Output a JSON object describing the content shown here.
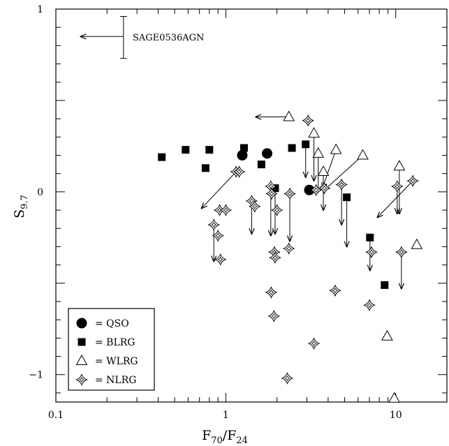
{
  "chart_data": {
    "type": "scatter",
    "xscale": "log",
    "xlim": [
      0.1,
      20
    ],
    "ylim": [
      -1.15,
      1.0
    ],
    "x_ticks": [
      "0.1",
      "1",
      "10"
    ],
    "y_ticks": [
      "1",
      "0",
      "−1"
    ],
    "xlabel": "F",
    "xlabel_sub1": "70",
    "xlabel_mid": "/F",
    "xlabel_sub2": "24",
    "ylabel": "S",
    "ylabel_sub": "9.7",
    "annotation": "SAGE0536AGN",
    "sage_point": {
      "x": 0.25,
      "y": 0.85,
      "yerr_low": 0.73,
      "yerr_high": 0.96,
      "arrow_to_x": 0.14
    },
    "legend": [
      {
        "marker": "circle",
        "label": "= QSO"
      },
      {
        "marker": "square",
        "label": "= BLRG"
      },
      {
        "marker": "triangle",
        "label": "= WLRG"
      },
      {
        "marker": "star",
        "label": "= NLRG"
      }
    ],
    "series": [
      {
        "name": "QSO",
        "marker": "circle",
        "points": [
          {
            "x": 1.25,
            "y": 0.2
          },
          {
            "x": 1.75,
            "y": 0.21
          },
          {
            "x": 3.1,
            "y": 0.01
          }
        ]
      },
      {
        "name": "BLRG",
        "marker": "square",
        "points": [
          {
            "x": 0.42,
            "y": 0.19
          },
          {
            "x": 0.58,
            "y": 0.23
          },
          {
            "x": 0.8,
            "y": 0.23
          },
          {
            "x": 0.76,
            "y": 0.13
          },
          {
            "x": 1.28,
            "y": 0.24
          },
          {
            "x": 1.62,
            "y": 0.15
          },
          {
            "x": 1.95,
            "y": 0.02,
            "arrow_y": -0.23
          },
          {
            "x": 2.45,
            "y": 0.24
          },
          {
            "x": 2.95,
            "y": 0.26,
            "arrow_y": 0.08
          },
          {
            "x": 5.15,
            "y": -0.03,
            "arrow_y": -0.3
          },
          {
            "x": 7.05,
            "y": -0.25,
            "arrow_y": -0.43
          },
          {
            "x": 8.6,
            "y": -0.51
          }
        ]
      },
      {
        "name": "WLRG",
        "marker": "triangle",
        "points": [
          {
            "x": 2.35,
            "y": 0.41,
            "arrow_x": 1.5
          },
          {
            "x": 3.3,
            "y": 0.32,
            "arrow_y": 0.06
          },
          {
            "x": 3.5,
            "y": 0.21,
            "arrow_y": 0.0
          },
          {
            "x": 3.75,
            "y": 0.11,
            "arrow_y": -0.1
          },
          {
            "x": 4.45,
            "y": 0.23,
            "arrow_x": 3.7,
            "arrow_y": 0.02
          },
          {
            "x": 6.4,
            "y": 0.2,
            "arrow_x": 3.8,
            "arrow_y": 0.01
          },
          {
            "x": 10.5,
            "y": 0.14,
            "arrow_y": -0.12
          },
          {
            "x": 13.3,
            "y": -0.29
          },
          {
            "x": 8.9,
            "y": -0.79
          },
          {
            "x": 9.8,
            "y": -1.13
          }
        ]
      },
      {
        "name": "NLRG",
        "marker": "star",
        "points": [
          {
            "x": 1.15,
            "y": 0.11,
            "arrow_x": 0.72,
            "arrow_y": -0.09
          },
          {
            "x": 1.2,
            "y": 0.11
          },
          {
            "x": 0.85,
            "y": -0.18,
            "arrow_y": -0.38
          },
          {
            "x": 0.9,
            "y": -0.24
          },
          {
            "x": 0.92,
            "y": -0.1
          },
          {
            "x": 1.0,
            "y": -0.1
          },
          {
            "x": 0.93,
            "y": -0.37
          },
          {
            "x": 1.42,
            "y": -0.05,
            "arrow_y": -0.23
          },
          {
            "x": 1.48,
            "y": -0.08
          },
          {
            "x": 1.84,
            "y": 0.03,
            "arrow_y": -0.24
          },
          {
            "x": 1.86,
            "y": -0.01
          },
          {
            "x": 2.0,
            "y": -0.1
          },
          {
            "x": 1.93,
            "y": -0.33
          },
          {
            "x": 1.95,
            "y": -0.36
          },
          {
            "x": 2.38,
            "y": -0.01,
            "arrow_y": -0.27
          },
          {
            "x": 2.35,
            "y": -0.31
          },
          {
            "x": 1.85,
            "y": -0.55
          },
          {
            "x": 1.92,
            "y": -0.68
          },
          {
            "x": 2.3,
            "y": -1.02
          },
          {
            "x": 3.05,
            "y": 0.39
          },
          {
            "x": 3.4,
            "y": 0.01
          },
          {
            "x": 3.8,
            "y": 0.02
          },
          {
            "x": 4.8,
            "y": 0.04,
            "arrow_y": -0.18
          },
          {
            "x": 4.4,
            "y": -0.54
          },
          {
            "x": 3.3,
            "y": -0.83
          },
          {
            "x": 7.2,
            "y": -0.33
          },
          {
            "x": 7.0,
            "y": -0.62
          },
          {
            "x": 10.2,
            "y": 0.03,
            "arrow_y": -0.12
          },
          {
            "x": 12.6,
            "y": 0.06,
            "arrow_x": 7.8,
            "arrow_y": -0.14
          },
          {
            "x": 10.8,
            "y": -0.33,
            "arrow_y": -0.53
          }
        ]
      }
    ]
  }
}
